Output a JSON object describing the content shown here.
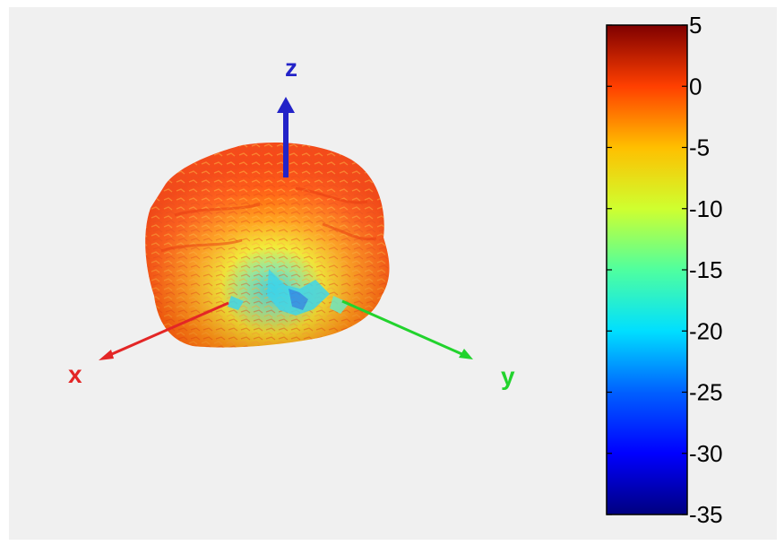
{
  "chart_data": {
    "type": "heatmap",
    "title": "",
    "axes": {
      "x": {
        "label": "x",
        "color": "#e32626"
      },
      "y": {
        "label": "y",
        "color": "#22d32d"
      },
      "z": {
        "label": "z",
        "color": "#2323c8"
      }
    },
    "colorbar": {
      "min": -35,
      "max": 5,
      "ticks": [
        5,
        0,
        -5,
        -10,
        -15,
        -20,
        -25,
        -30,
        -35
      ],
      "tick_labels": [
        "5",
        "0",
        "-5",
        "-10",
        "-15",
        "-20",
        "-25",
        "-30",
        "-35"
      ],
      "colormap": "jet"
    },
    "surface_description_values": {
      "dominant_value_range": [
        -5,
        0
      ],
      "minimum_region_value": -22
    }
  }
}
